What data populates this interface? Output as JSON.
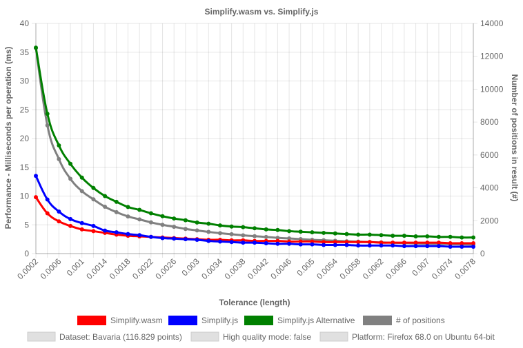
{
  "chart_data": {
    "type": "line",
    "title": "Simplify.wasm vs. Simplify.js",
    "xlabel": "Tolerance (length)",
    "ylabel_left": "Performance - Milliseconds per operation (ms)",
    "ylabel_right": "Number of positions in result (#)",
    "ylim_left": [
      0,
      40
    ],
    "ylim_right": [
      0,
      14000
    ],
    "yticks_left": [
      0,
      5,
      10,
      15,
      20,
      25,
      30,
      35,
      40
    ],
    "yticks_right": [
      0,
      2000,
      4000,
      6000,
      8000,
      10000,
      12000,
      14000
    ],
    "x": [
      0.0002,
      0.0004,
      0.0006,
      0.0008,
      0.001,
      0.0012,
      0.0014,
      0.0016,
      0.0018,
      0.002,
      0.0022,
      0.0024,
      0.0026,
      0.0028,
      0.003,
      0.0032,
      0.0034,
      0.0036,
      0.0038,
      0.004,
      0.0042,
      0.0044,
      0.0046,
      0.0048,
      0.005,
      0.0052,
      0.0054,
      0.0056,
      0.0058,
      0.006,
      0.0062,
      0.0064,
      0.0066,
      0.0068,
      0.007,
      0.0072,
      0.0074,
      0.0076,
      0.0078
    ],
    "x_tick_labels": [
      "0.0002",
      "0.0006",
      "0.001",
      "0.0014",
      "0.0018",
      "0.0022",
      "0.0026",
      "0.003",
      "0.0034",
      "0.0038",
      "0.0042",
      "0.0046",
      "0.005",
      "0.0054",
      "0.0058",
      "0.0062",
      "0.0066",
      "0.007",
      "0.0074",
      "0.0078"
    ],
    "grid": true,
    "legend_position": "bottom",
    "series": [
      {
        "name": "Simplify.wasm",
        "axis": "left",
        "color": "#ff0000",
        "values": [
          9.8,
          7.0,
          5.6,
          4.8,
          4.2,
          3.9,
          3.6,
          3.3,
          3.1,
          3.0,
          2.9,
          2.8,
          2.7,
          2.6,
          2.5,
          2.4,
          2.4,
          2.3,
          2.3,
          2.2,
          2.2,
          2.2,
          2.1,
          2.1,
          2.1,
          2.0,
          2.0,
          2.0,
          2.0,
          2.0,
          1.9,
          1.9,
          1.9,
          1.9,
          1.9,
          1.9,
          1.8,
          1.8,
          1.8
        ]
      },
      {
        "name": "Simplify.js",
        "axis": "left",
        "color": "#0000ff",
        "values": [
          13.5,
          9.4,
          7.3,
          6.0,
          5.3,
          4.8,
          4.0,
          3.7,
          3.4,
          3.2,
          2.9,
          2.7,
          2.6,
          2.5,
          2.4,
          2.2,
          2.1,
          2.0,
          1.9,
          1.9,
          1.8,
          1.7,
          1.7,
          1.6,
          1.6,
          1.5,
          1.5,
          1.5,
          1.4,
          1.4,
          1.4,
          1.4,
          1.3,
          1.3,
          1.3,
          1.3,
          1.2,
          1.2,
          1.2
        ]
      },
      {
        "name": "Simplify.js Alternative",
        "axis": "left",
        "color": "#008000",
        "values": [
          35.8,
          24.3,
          18.8,
          15.6,
          13.2,
          11.4,
          10.0,
          9.0,
          8.1,
          7.6,
          7.0,
          6.5,
          6.1,
          5.8,
          5.4,
          5.2,
          4.9,
          4.7,
          4.6,
          4.4,
          4.2,
          4.1,
          3.9,
          3.8,
          3.7,
          3.6,
          3.5,
          3.4,
          3.3,
          3.3,
          3.2,
          3.1,
          3.1,
          3.0,
          3.0,
          2.9,
          2.9,
          2.8,
          2.8
        ]
      },
      {
        "name": "# of positions",
        "axis": "right",
        "color": "#808080",
        "values": [
          12500,
          7800,
          5750,
          4550,
          3800,
          3300,
          2850,
          2520,
          2260,
          2080,
          1900,
          1750,
          1630,
          1500,
          1410,
          1320,
          1240,
          1180,
          1110,
          1060,
          1010,
          960,
          920,
          880,
          840,
          810,
          780,
          750,
          730,
          700,
          680,
          660,
          640,
          620,
          600,
          590,
          570,
          560,
          550
        ]
      }
    ],
    "info_items": [
      "Dataset: Bavaria (116.829 points)",
      "High quality mode: false",
      "Platform: Firefox 68.0 on Ubuntu 64-bit"
    ]
  }
}
